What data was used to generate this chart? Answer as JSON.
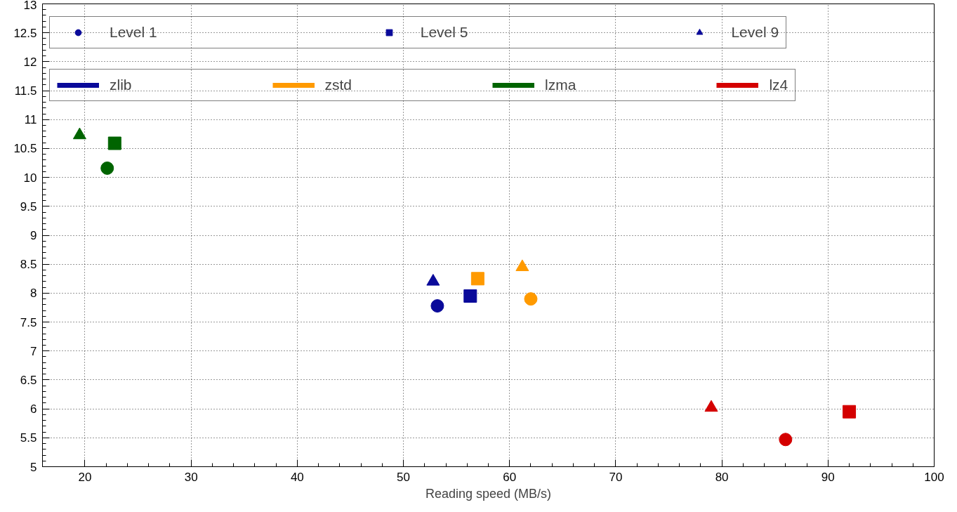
{
  "chart_data": {
    "type": "scatter",
    "xlabel": "Reading speed (MB/s)",
    "xlim": [
      16,
      100
    ],
    "xticks": [
      20,
      30,
      40,
      50,
      60,
      70,
      80,
      90,
      100
    ],
    "ylim": [
      5,
      13
    ],
    "yticks": [
      5,
      5.5,
      6,
      6.5,
      7,
      7.5,
      8,
      8.5,
      9,
      9.5,
      10,
      10.5,
      11,
      11.5,
      12,
      12.5,
      13
    ],
    "grid": true,
    "legend": "top",
    "series": [
      {
        "name": "Level 1",
        "marker": "circle",
        "x": [
          53.2,
          62.0,
          22.1,
          86.0
        ],
        "values": [
          7.78,
          7.9,
          10.16,
          5.47
        ],
        "colors": [
          "#0a0a9a",
          "#ff9a00",
          "#006400",
          "#d40000"
        ]
      },
      {
        "name": "Level 5",
        "marker": "square",
        "x": [
          56.3,
          57.0,
          22.8,
          92.0
        ],
        "values": [
          7.95,
          8.25,
          10.59,
          5.95
        ],
        "colors": [
          "#0a0a9a",
          "#ff9a00",
          "#006400",
          "#d40000"
        ]
      },
      {
        "name": "Level 9",
        "marker": "triangle",
        "x": [
          52.8,
          61.2,
          19.5,
          79.0
        ],
        "values": [
          8.2,
          8.45,
          10.73,
          6.02
        ],
        "colors": [
          "#0a0a9a",
          "#ff9a00",
          "#006400",
          "#d40000"
        ]
      },
      {
        "name": "zlib",
        "type": "line",
        "color": "#0a0a9a"
      },
      {
        "name": "zstd",
        "type": "line",
        "color": "#ff9a00"
      },
      {
        "name": "lzma",
        "type": "line",
        "color": "#006400"
      },
      {
        "name": "lz4",
        "type": "line",
        "color": "#d40000"
      }
    ]
  }
}
